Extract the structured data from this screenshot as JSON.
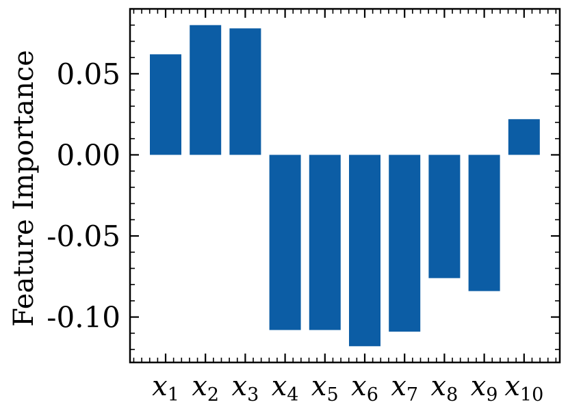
{
  "chart_data": {
    "type": "bar",
    "title": "",
    "xlabel": "",
    "ylabel": "Feature Importance",
    "categories": [
      {
        "base": "x",
        "sub": "1"
      },
      {
        "base": "x",
        "sub": "2"
      },
      {
        "base": "x",
        "sub": "3"
      },
      {
        "base": "x",
        "sub": "4"
      },
      {
        "base": "x",
        "sub": "5"
      },
      {
        "base": "x",
        "sub": "6"
      },
      {
        "base": "x",
        "sub": "7"
      },
      {
        "base": "x",
        "sub": "8"
      },
      {
        "base": "x",
        "sub": "9"
      },
      {
        "base": "x",
        "sub": "10"
      }
    ],
    "values": [
      0.062,
      0.08,
      0.078,
      -0.108,
      -0.108,
      -0.118,
      -0.109,
      -0.076,
      -0.084,
      0.022
    ],
    "ylim": [
      -0.128,
      0.09
    ],
    "yticks": [
      0.05,
      0.0,
      -0.05,
      -0.1
    ],
    "ytick_labels": [
      "0.05",
      "0.00",
      "-0.05",
      "-0.10"
    ],
    "bar_color": "#0c5da5",
    "grid": false,
    "legend": "none"
  }
}
